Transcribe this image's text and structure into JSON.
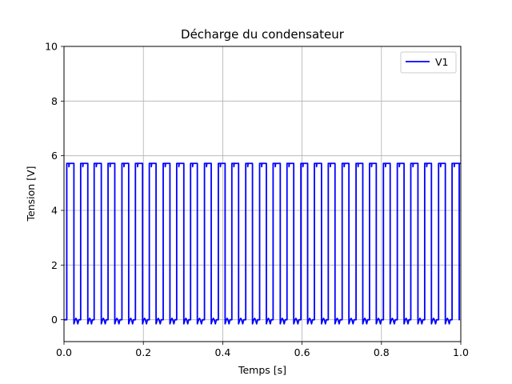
{
  "chart_data": {
    "type": "line",
    "title": "Décharge du condensateur",
    "xlabel": "Temps [s]",
    "ylabel": "Tension [V]",
    "xlim": [
      0.0,
      1.0
    ],
    "ylim": [
      -0.8,
      10
    ],
    "xticks": [
      0.0,
      0.2,
      0.4,
      0.6,
      0.8,
      1.0
    ],
    "xtick_labels": [
      "0.0",
      "0.2",
      "0.4",
      "0.6",
      "0.8",
      "1.0"
    ],
    "yticks": [
      0,
      2,
      4,
      6,
      8,
      10
    ],
    "ytick_labels": [
      "0",
      "2",
      "4",
      "6",
      "8",
      "10"
    ],
    "grid": true,
    "legend_position": "top-right",
    "series": [
      {
        "name": "V1",
        "color": "#0000ff",
        "waveform": "square",
        "high": 5.72,
        "low": 0.0,
        "undershoot": -0.15,
        "pulses": [
          [
            0.007,
            0.025
          ],
          [
            0.042,
            0.06
          ],
          [
            0.076,
            0.094
          ],
          [
            0.111,
            0.128
          ],
          [
            0.146,
            0.163
          ],
          [
            0.18,
            0.198
          ],
          [
            0.215,
            0.232
          ],
          [
            0.25,
            0.267
          ],
          [
            0.284,
            0.302
          ],
          [
            0.319,
            0.336
          ],
          [
            0.354,
            0.371
          ],
          [
            0.389,
            0.406
          ],
          [
            0.423,
            0.44
          ],
          [
            0.458,
            0.475
          ],
          [
            0.493,
            0.51
          ],
          [
            0.527,
            0.545
          ],
          [
            0.562,
            0.579
          ],
          [
            0.597,
            0.614
          ],
          [
            0.631,
            0.649
          ],
          [
            0.666,
            0.683
          ],
          [
            0.701,
            0.718
          ],
          [
            0.736,
            0.753
          ],
          [
            0.77,
            0.787
          ],
          [
            0.805,
            0.822
          ],
          [
            0.84,
            0.857
          ],
          [
            0.874,
            0.892
          ],
          [
            0.909,
            0.926
          ],
          [
            0.944,
            0.961
          ],
          [
            0.978,
            0.996
          ]
        ]
      }
    ]
  }
}
